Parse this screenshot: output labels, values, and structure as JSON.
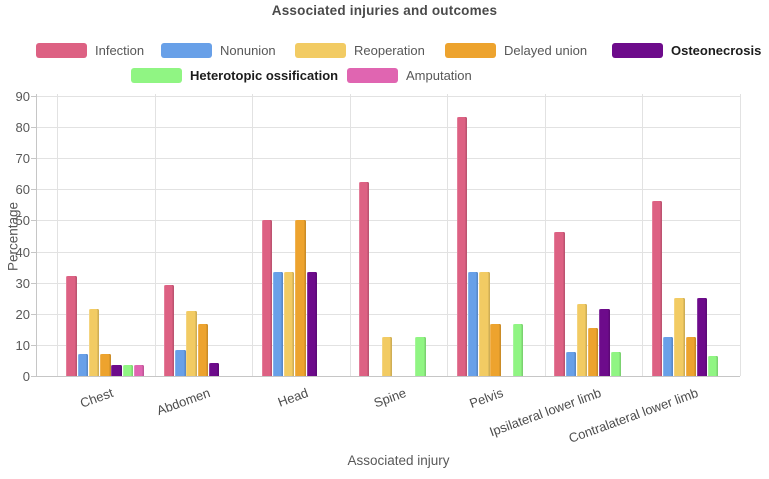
{
  "chart_data": {
    "type": "bar",
    "title": "Associated injuries and outcomes",
    "xlabel": "Associated injury",
    "ylabel": "Percentage",
    "ylim": [
      0,
      90
    ],
    "ytick_step": 10,
    "yticks": [
      0,
      10,
      20,
      30,
      40,
      50,
      60,
      70,
      80,
      90
    ],
    "grid": true,
    "legend_position": "top",
    "categories": [
      "Chest",
      "Abdomen",
      "Head",
      "Spine",
      "Pelvis",
      "Ipsilateral lower limb",
      "Contralateral lower limb"
    ],
    "series": [
      {
        "name": "Infection",
        "color": "#dd6183",
        "values": [
          32.1,
          29.2,
          50.0,
          62.5,
          83.3,
          46.2,
          56.3
        ]
      },
      {
        "name": "Nonunion",
        "color": "#68a0e8",
        "values": [
          7.1,
          8.3,
          33.3,
          0,
          33.3,
          7.7,
          12.5
        ]
      },
      {
        "name": "Reoperation",
        "color": "#f2cb63",
        "values": [
          21.4,
          20.8,
          33.3,
          12.5,
          33.3,
          23.1,
          25.0
        ]
      },
      {
        "name": "Delayed union",
        "color": "#eda32e",
        "values": [
          7.1,
          16.7,
          50.0,
          0,
          16.7,
          15.4,
          12.5
        ]
      },
      {
        "name": "Osteonecrosis",
        "color": "#6d0b8b",
        "values": [
          3.6,
          4.2,
          33.3,
          0,
          0,
          21.4,
          25.0
        ]
      },
      {
        "name": "Heterotopic ossification",
        "color": "#90f583",
        "values": [
          3.6,
          0,
          0,
          12.5,
          16.7,
          7.7,
          6.3
        ]
      },
      {
        "name": "Amputation",
        "color": "#e065b1",
        "values": [
          3.6,
          0,
          0,
          0,
          0,
          0,
          0
        ]
      }
    ]
  }
}
